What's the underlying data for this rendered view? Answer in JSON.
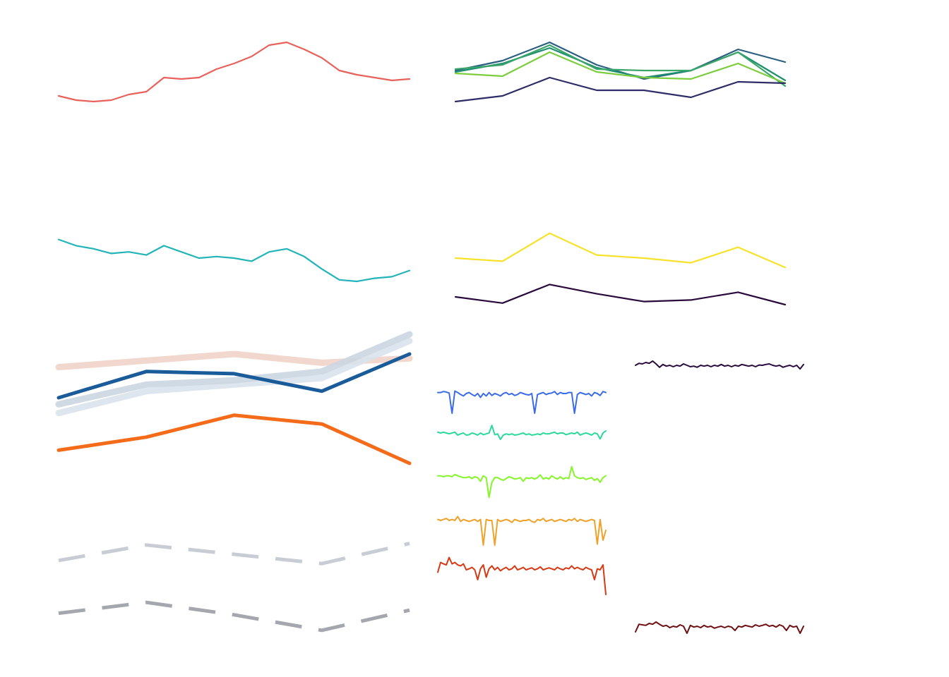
{
  "chart_data": [
    {
      "type": "line",
      "panel": "top-left",
      "x": [
        1,
        2,
        3,
        4,
        5,
        6,
        7,
        8,
        9,
        10,
        11,
        12,
        13,
        14,
        15,
        16,
        17,
        18,
        19,
        20,
        21
      ],
      "ylim": [
        0,
        1
      ],
      "series": [
        {
          "color": "#e8615a",
          "values": [
            0.52,
            0.49,
            0.48,
            0.49,
            0.53,
            0.55,
            0.65,
            0.64,
            0.65,
            0.71,
            0.75,
            0.8,
            0.88,
            0.9,
            0.85,
            0.79,
            0.7,
            0.67,
            0.65,
            0.63,
            0.64
          ]
        }
      ]
    },
    {
      "type": "line",
      "panel": "top-right",
      "x": [
        1,
        2,
        3,
        4,
        5,
        6,
        7,
        8
      ],
      "ylim": [
        0,
        1
      ],
      "series": [
        {
          "color": "#2b5f80",
          "values": [
            0.7,
            0.77,
            0.9,
            0.74,
            0.64,
            0.7,
            0.85,
            0.76
          ]
        },
        {
          "color": "#1f8f6f",
          "values": [
            0.69,
            0.75,
            0.86,
            0.72,
            0.65,
            0.7,
            0.83,
            0.63
          ]
        },
        {
          "color": "#3aa56a",
          "values": [
            0.71,
            0.74,
            0.88,
            0.71,
            0.7,
            0.7,
            0.83,
            0.59
          ]
        },
        {
          "color": "#7ccd3e",
          "values": [
            0.68,
            0.66,
            0.83,
            0.69,
            0.65,
            0.64,
            0.75,
            0.61
          ]
        },
        {
          "color": "#2e2c66",
          "values": [
            0.48,
            0.52,
            0.65,
            0.56,
            0.56,
            0.51,
            0.62,
            0.61
          ]
        }
      ]
    },
    {
      "type": "line",
      "panel": "middle-left",
      "x": [
        1,
        2,
        3,
        4,
        5,
        6,
        7,
        8,
        9,
        10,
        11,
        12,
        13,
        14,
        15,
        16,
        17,
        18,
        19,
        20,
        21
      ],
      "ylim": [
        0,
        1
      ],
      "series": [
        {
          "color": "#22b4b8",
          "values": [
            0.82,
            0.78,
            0.76,
            0.73,
            0.74,
            0.72,
            0.78,
            0.74,
            0.7,
            0.71,
            0.7,
            0.68,
            0.74,
            0.76,
            0.71,
            0.63,
            0.56,
            0.55,
            0.57,
            0.58,
            0.62
          ]
        }
      ]
    },
    {
      "type": "line",
      "panel": "middle-right",
      "x": [
        1,
        2,
        3,
        4,
        5,
        6,
        7,
        8
      ],
      "ylim": [
        0,
        1
      ],
      "series": [
        {
          "color": "#f7e22a",
          "values": [
            0.7,
            0.68,
            0.86,
            0.72,
            0.7,
            0.67,
            0.77,
            0.64
          ]
        },
        {
          "color": "#2a0a3c",
          "values": [
            0.45,
            0.41,
            0.53,
            0.47,
            0.42,
            0.43,
            0.48,
            0.4
          ]
        }
      ]
    },
    {
      "type": "line",
      "panel": "lower-left-top",
      "x": [
        1,
        2,
        3,
        4,
        5
      ],
      "ylim": [
        0,
        1
      ],
      "series": [
        {
          "color": "#f0d3c8",
          "values": [
            0.74,
            0.77,
            0.8,
            0.76,
            0.78
          ],
          "style": "thick-faded"
        },
        {
          "color": "#d9e3ec",
          "values": [
            0.53,
            0.63,
            0.66,
            0.69,
            0.86
          ],
          "style": "thick-faded"
        },
        {
          "color": "#cbd6e1",
          "values": [
            0.57,
            0.66,
            0.68,
            0.72,
            0.89
          ],
          "style": "thick-faded"
        },
        {
          "color": "#1a5b9a",
          "values": [
            0.6,
            0.72,
            0.71,
            0.63,
            0.8
          ],
          "style": "thick"
        },
        {
          "color": "#f46b1a",
          "values": [
            0.36,
            0.42,
            0.52,
            0.48,
            0.3
          ],
          "style": "thick"
        }
      ]
    },
    {
      "type": "line",
      "panel": "lower-left-bottom",
      "x": [
        1,
        2,
        3,
        4,
        5
      ],
      "ylim": [
        0,
        1
      ],
      "series": [
        {
          "color": "#c8ccd4",
          "values": [
            0.66,
            0.76,
            0.7,
            0.64,
            0.77
          ],
          "style": "dashed"
        },
        {
          "color": "#a4a7ad",
          "values": [
            0.32,
            0.39,
            0.31,
            0.21,
            0.34
          ],
          "style": "dashed"
        }
      ]
    },
    {
      "type": "line",
      "panel": "lower-center-small-multiples",
      "ylim": [
        0,
        1
      ],
      "series": [
        {
          "color": "#3a6be8",
          "values": [
            0.62,
            0.62,
            0.64,
            0.63,
            0.61,
            0.2,
            0.65,
            0.62,
            0.58,
            0.55,
            0.6,
            0.62,
            0.58,
            0.55,
            0.6,
            0.52,
            0.6,
            0.55,
            0.62,
            0.56,
            0.6,
            0.58,
            0.55,
            0.6,
            0.62,
            0.58,
            0.6,
            0.56,
            0.58,
            0.62,
            0.6,
            0.58,
            0.57,
            0.6,
            0.2,
            0.58,
            0.6,
            0.62,
            0.58,
            0.6,
            0.61,
            0.64,
            0.58,
            0.62,
            0.6,
            0.6,
            0.62,
            0.62,
            0.2,
            0.58,
            0.62,
            0.6,
            0.58,
            0.6,
            0.55,
            0.62,
            0.6,
            0.56,
            0.64,
            0.62
          ]
        },
        {
          "color": "#2bd99a",
          "values": [
            0.62,
            0.6,
            0.62,
            0.6,
            0.58,
            0.6,
            0.62,
            0.55,
            0.58,
            0.6,
            0.55,
            0.56,
            0.6,
            0.58,
            0.55,
            0.6,
            0.56,
            0.58,
            0.6,
            0.78,
            0.56,
            0.58,
            0.45,
            0.55,
            0.58,
            0.56,
            0.58,
            0.55,
            0.56,
            0.58,
            0.6,
            0.56,
            0.58,
            0.55,
            0.56,
            0.58,
            0.56,
            0.6,
            0.58,
            0.58,
            0.6,
            0.62,
            0.58,
            0.6,
            0.6,
            0.56,
            0.58,
            0.6,
            0.58,
            0.62,
            0.55,
            0.58,
            0.6,
            0.58,
            0.55,
            0.6,
            0.58,
            0.46,
            0.6,
            0.65
          ]
        },
        {
          "color": "#86f52a",
          "values": [
            0.62,
            0.62,
            0.6,
            0.62,
            0.62,
            0.6,
            0.65,
            0.62,
            0.6,
            0.58,
            0.58,
            0.6,
            0.56,
            0.6,
            0.58,
            0.5,
            0.62,
            0.58,
            0.15,
            0.48,
            0.58,
            0.58,
            0.55,
            0.52,
            0.56,
            0.6,
            0.58,
            0.55,
            0.56,
            0.58,
            0.5,
            0.58,
            0.56,
            0.58,
            0.55,
            0.58,
            0.64,
            0.55,
            0.58,
            0.55,
            0.62,
            0.58,
            0.55,
            0.6,
            0.55,
            0.58,
            0.56,
            0.82,
            0.62,
            0.58,
            0.56,
            0.58,
            0.54,
            0.56,
            0.58,
            0.52,
            0.56,
            0.48,
            0.58,
            0.62
          ]
        },
        {
          "color": "#f0a12a",
          "values": [
            0.62,
            0.6,
            0.62,
            0.64,
            0.6,
            0.62,
            0.6,
            0.68,
            0.58,
            0.62,
            0.6,
            0.58,
            0.6,
            0.62,
            0.58,
            0.62,
            0.1,
            0.62,
            0.6,
            0.6,
            0.1,
            0.62,
            0.58,
            0.6,
            0.62,
            0.6,
            0.56,
            0.62,
            0.6,
            0.58,
            0.6,
            0.6,
            0.62,
            0.58,
            0.56,
            0.62,
            0.6,
            0.64,
            0.58,
            0.6,
            0.62,
            0.58,
            0.6,
            0.62,
            0.6,
            0.58,
            0.62,
            0.6,
            0.64,
            0.58,
            0.62,
            0.6,
            0.58,
            0.6,
            0.62,
            0.6,
            0.12,
            0.62,
            0.2,
            0.4
          ]
        },
        {
          "color": "#d63a14",
          "values": [
            0.55,
            0.75,
            0.72,
            0.7,
            0.85,
            0.72,
            0.75,
            0.7,
            0.68,
            0.72,
            0.6,
            0.62,
            0.65,
            0.6,
            0.4,
            0.62,
            0.7,
            0.45,
            0.62,
            0.68,
            0.6,
            0.65,
            0.58,
            0.62,
            0.65,
            0.6,
            0.62,
            0.68,
            0.6,
            0.62,
            0.65,
            0.6,
            0.62,
            0.64,
            0.6,
            0.62,
            0.66,
            0.6,
            0.62,
            0.64,
            0.62,
            0.6,
            0.65,
            0.62,
            0.6,
            0.64,
            0.62,
            0.68,
            0.62,
            0.65,
            0.62,
            0.6,
            0.65,
            0.62,
            0.6,
            0.4,
            0.62,
            0.6,
            0.7,
            0.1
          ]
        }
      ]
    },
    {
      "type": "line",
      "panel": "lower-right-small-multiples",
      "ylim": [
        0,
        1
      ],
      "series": [
        {
          "color": "#2a0a3c",
          "values": [
            0.55,
            0.62,
            0.6,
            0.65,
            0.62,
            0.7,
            0.6,
            0.48,
            0.58,
            0.52,
            0.55,
            0.5,
            0.55,
            0.52,
            0.6,
            0.55,
            0.5,
            0.52,
            0.48,
            0.55,
            0.52,
            0.55,
            0.5,
            0.55,
            0.52,
            0.58,
            0.52,
            0.55,
            0.5,
            0.55,
            0.52,
            0.58,
            0.55,
            0.52,
            0.55,
            0.5,
            0.56,
            0.55,
            0.58,
            0.6,
            0.55,
            0.52,
            0.55,
            0.48,
            0.52,
            0.55,
            0.5,
            0.55,
            0.42,
            0.58
          ]
        },
        {
          "color": "#6e0f12",
          "values": [
            0.35,
            0.62,
            0.6,
            0.58,
            0.65,
            0.62,
            0.7,
            0.62,
            0.55,
            0.58,
            0.5,
            0.55,
            0.52,
            0.6,
            0.55,
            0.3,
            0.58,
            0.52,
            0.55,
            0.5,
            0.58,
            0.52,
            0.55,
            0.48,
            0.52,
            0.55,
            0.5,
            0.55,
            0.52,
            0.4,
            0.55,
            0.52,
            0.58,
            0.55,
            0.52,
            0.6,
            0.55,
            0.58,
            0.62,
            0.55,
            0.58,
            0.52,
            0.6,
            0.55,
            0.4,
            0.58,
            0.52,
            0.55,
            0.3,
            0.55
          ]
        }
      ]
    }
  ]
}
